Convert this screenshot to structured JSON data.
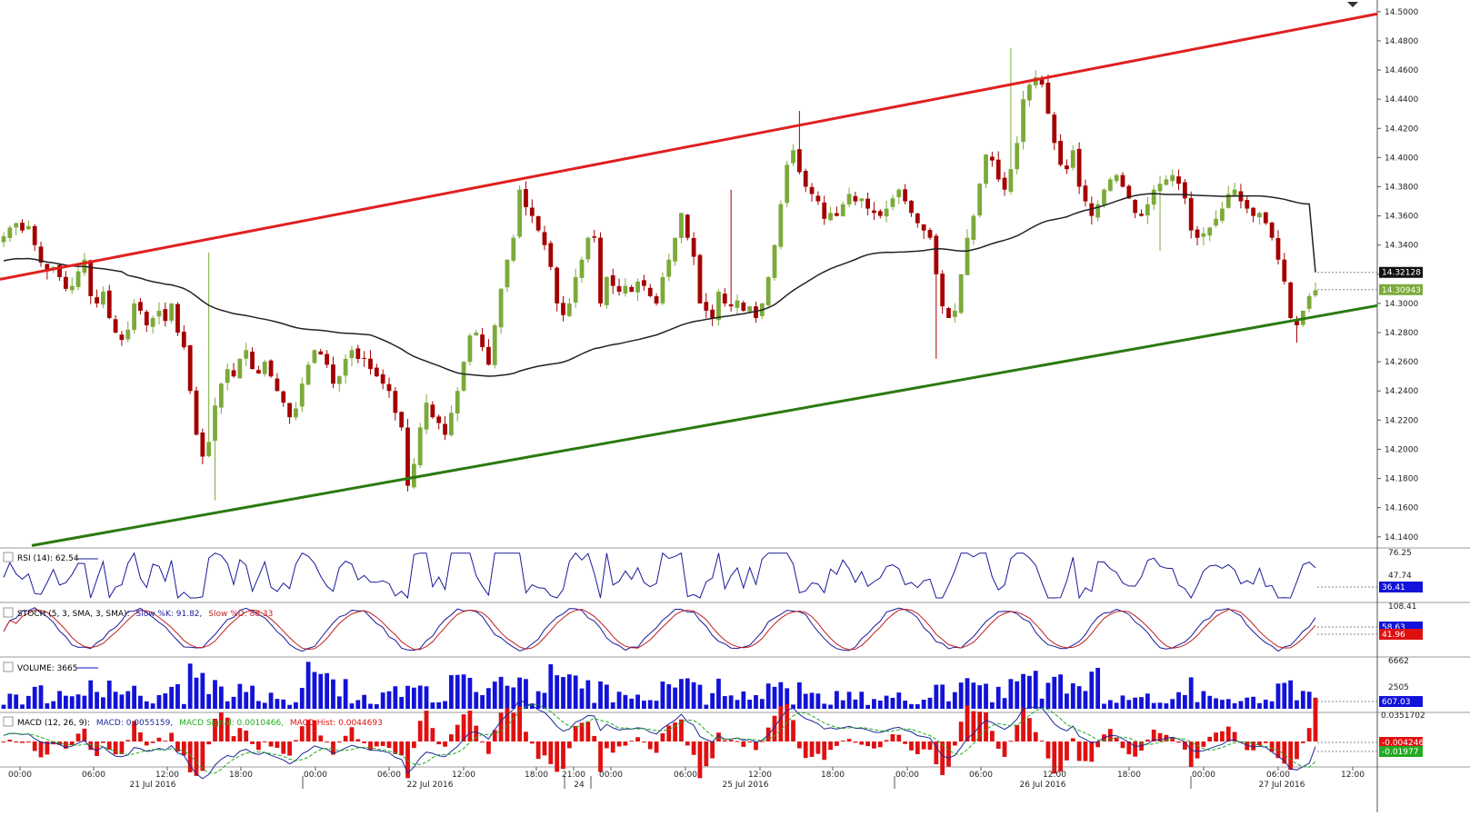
{
  "chart_data": {
    "type": "candlestick",
    "instrument_price_axis": {
      "ticks": [
        "14.5000",
        "14.4800",
        "14.4600",
        "14.4400",
        "14.4200",
        "14.4000",
        "14.3800",
        "14.3600",
        "14.3400",
        "14.3200",
        "14.3000",
        "14.2800",
        "14.2600",
        "14.2400",
        "14.2200",
        "14.2000",
        "14.1800",
        "14.1600",
        "14.1400"
      ],
      "range": [
        14.133,
        14.508
      ]
    },
    "time_axis": {
      "hour_labels": [
        "00:00",
        "06:00",
        "12:00",
        "18:00",
        "00:00",
        "06:00",
        "12:00",
        "18:00",
        "21:00",
        "00:00",
        "06:00",
        "12:00",
        "18:00",
        "00:00",
        "06:00",
        "12:00",
        "18:00",
        "00:00",
        "06:00",
        "12:00"
      ],
      "date_labels": [
        "21 Jul 2016",
        "22 Jul 2016",
        "24",
        "25 Jul 2016",
        "26 Jul 2016",
        "27 Jul 2016"
      ]
    },
    "last_price": "14.30943",
    "ma_value": "14.32128",
    "closes": [
      14.346,
      14.352,
      14.355,
      14.35,
      14.353,
      14.34,
      14.328,
      14.322,
      14.325,
      14.318,
      14.31,
      14.312,
      14.322,
      14.33,
      14.305,
      14.3,
      14.308,
      14.29,
      14.28,
      14.275,
      14.282,
      14.3,
      14.295,
      14.285,
      14.29,
      14.295,
      14.288,
      14.3,
      14.28,
      14.27,
      14.24,
      14.21,
      14.195,
      14.205,
      14.23,
      14.245,
      14.255,
      14.25,
      14.262,
      14.268,
      14.255,
      14.252,
      14.26,
      14.25,
      14.24,
      14.232,
      14.222,
      14.228,
      14.245,
      14.258,
      14.268,
      14.265,
      14.258,
      14.245,
      14.25,
      14.262,
      14.268,
      14.262,
      14.262,
      14.255,
      14.25,
      14.245,
      14.24,
      14.225,
      14.215,
      14.175,
      14.19,
      14.215,
      14.232,
      14.222,
      14.218,
      14.21,
      14.225,
      14.24,
      14.26,
      14.278,
      14.28,
      14.27,
      14.258,
      14.285,
      14.31,
      14.33,
      14.345,
      14.378,
      14.366,
      14.36,
      14.35,
      14.34,
      14.325,
      14.3,
      14.292,
      14.3,
      14.318,
      14.33,
      14.345,
      14.345,
      14.3,
      14.318,
      14.312,
      14.308,
      14.312,
      14.308,
      14.315,
      14.312,
      14.305,
      14.3,
      14.318,
      14.33,
      14.345,
      14.362,
      14.345,
      14.332,
      14.3,
      14.295,
      14.29,
      14.308,
      14.3,
      14.298,
      14.302,
      14.295,
      14.298,
      14.29,
      14.3,
      14.318,
      14.34,
      14.368,
      14.395,
      14.405,
      14.39,
      14.38,
      14.375,
      14.37,
      14.358,
      14.362,
      14.36,
      14.368,
      14.375,
      14.37,
      14.372,
      14.365,
      14.362,
      14.36,
      14.365,
      14.372,
      14.378,
      14.37,
      14.362,
      14.355,
      14.35,
      14.345,
      14.32,
      14.298,
      14.29,
      14.295,
      14.32,
      14.345,
      14.36,
      14.382,
      14.402,
      14.398,
      14.385,
      14.378,
      14.392,
      14.41,
      14.44,
      14.45,
      14.455,
      14.45,
      14.43,
      14.41,
      14.395,
      14.392,
      14.405,
      14.38,
      14.37,
      14.36,
      14.368,
      14.378,
      14.385,
      14.388,
      14.38,
      14.372,
      14.362,
      14.36,
      14.368,
      14.378,
      14.382,
      14.385,
      14.388,
      14.382,
      14.372,
      14.35,
      14.345,
      14.348,
      14.352,
      14.358,
      14.365,
      14.375,
      14.378,
      14.37,
      14.365,
      14.36,
      14.362,
      14.355,
      14.345,
      14.33,
      14.315,
      14.29,
      14.285,
      14.295,
      14.305,
      14.309
    ],
    "upper_channel": {
      "start": 14.3165,
      "end": 14.4985
    },
    "lower_channel": {
      "start": 14.134,
      "end": 14.2985
    },
    "rsi": {
      "label": "RSI (14): 62.54",
      "ticks": [
        "76.25",
        "47.74"
      ],
      "current": "36.41"
    },
    "stoch": {
      "label_prefix": "STOCH (5, 3, SMA, 3, SMA):",
      "k_label": "Slow %K: 91.82,",
      "d_label": "Slow %D: 88.33",
      "top_tick": "108.41",
      "k_current": "58.63",
      "d_current": "41.96"
    },
    "volume": {
      "label": "VOLUME: 3665",
      "ticks": [
        "6662",
        "2505"
      ],
      "current": "607.03"
    },
    "macd": {
      "label_prefix": "MACD (12, 26, 9):",
      "macd_label": "MACD: 0.0055159,",
      "signal_label": "MACD Signal: 0.0010466,",
      "hist_label": "MACD Hist: 0.0044693",
      "top_tick": "0.0351702",
      "hist_current": "-0.004246",
      "signal_current": "-0.01977"
    },
    "colors": {
      "bull": "#7caa3a",
      "bear": "#a40000",
      "upper_channel": "#e02020",
      "lower_channel": "#2a7a10",
      "ma": "#222222",
      "rsi": "#1a1a9a",
      "stoch_k": "#1a1a9a",
      "stoch_d": "#c02020",
      "volume": "#1212d8",
      "macd_line": "#1a2a9a",
      "signal_line": "#22aa22",
      "hist": "#e01010",
      "tag_blue": "#1212d8",
      "tag_red": "#e01010",
      "tag_green": "#22aa22",
      "tag_dark": "#111111",
      "tag_olive": "#7caa3a"
    }
  }
}
